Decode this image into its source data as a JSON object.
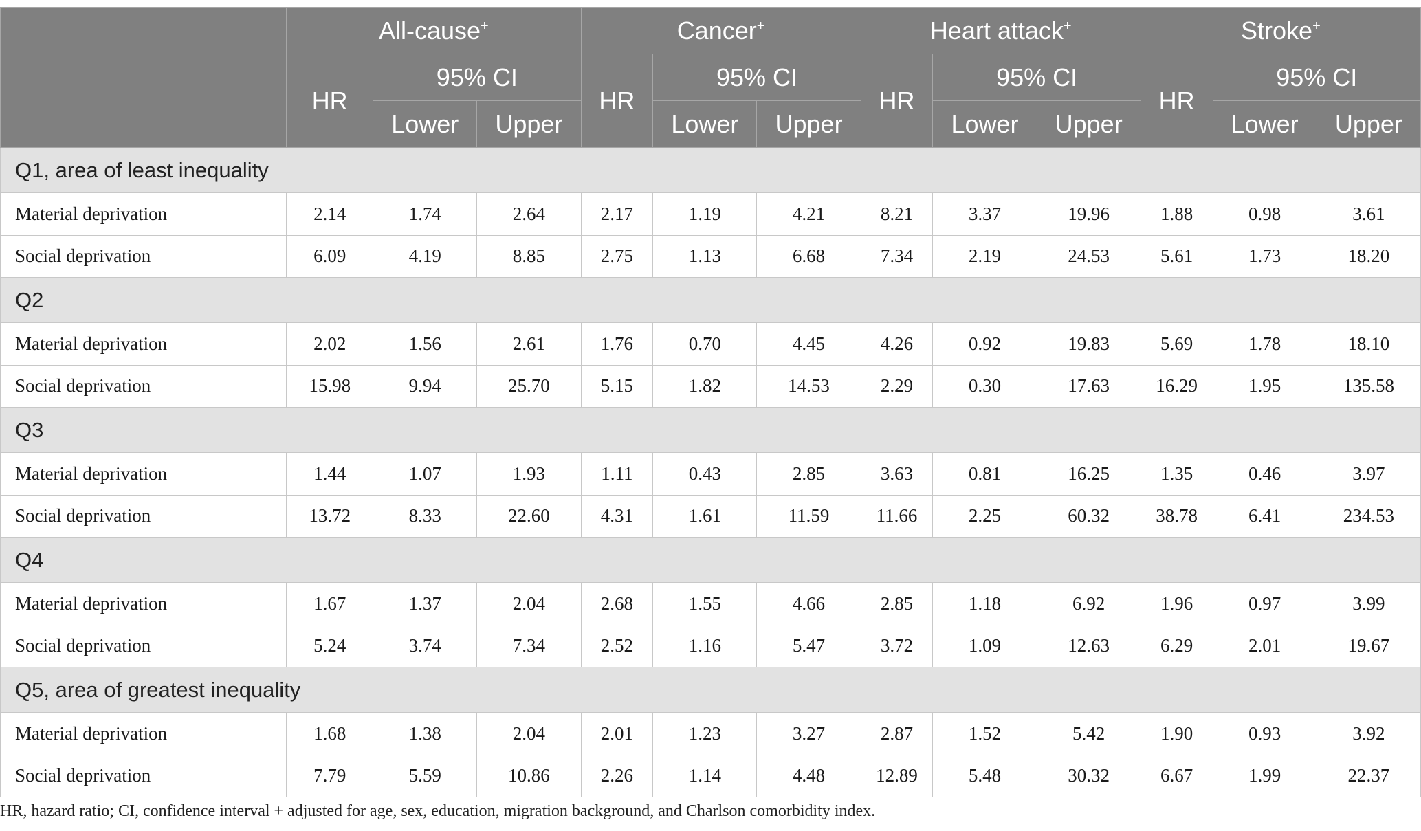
{
  "header": {
    "groups": [
      {
        "name": "All-cause",
        "mark": "+"
      },
      {
        "name": "Cancer",
        "mark": "+"
      },
      {
        "name": "Heart attack",
        "mark": "+"
      },
      {
        "name": "Stroke",
        "mark": "+"
      }
    ],
    "hr": "HR",
    "ci": "95% CI",
    "lower": "Lower",
    "upper": "Upper"
  },
  "sections": [
    {
      "title": "Q1, area of least inequality",
      "rows": [
        {
          "label": "Material deprivation",
          "values": [
            "2.14",
            "1.74",
            "2.64",
            "2.17",
            "1.19",
            "4.21",
            "8.21",
            "3.37",
            "19.96",
            "1.88",
            "0.98",
            "3.61"
          ]
        },
        {
          "label": "Social deprivation",
          "values": [
            "6.09",
            "4.19",
            "8.85",
            "2.75",
            "1.13",
            "6.68",
            "7.34",
            "2.19",
            "24.53",
            "5.61",
            "1.73",
            "18.20"
          ]
        }
      ]
    },
    {
      "title": "Q2",
      "rows": [
        {
          "label": "Material deprivation",
          "values": [
            "2.02",
            "1.56",
            "2.61",
            "1.76",
            "0.70",
            "4.45",
            "4.26",
            "0.92",
            "19.83",
            "5.69",
            "1.78",
            "18.10"
          ]
        },
        {
          "label": "Social deprivation",
          "values": [
            "15.98",
            "9.94",
            "25.70",
            "5.15",
            "1.82",
            "14.53",
            "2.29",
            "0.30",
            "17.63",
            "16.29",
            "1.95",
            "135.58"
          ]
        }
      ]
    },
    {
      "title": "Q3",
      "rows": [
        {
          "label": "Material deprivation",
          "values": [
            "1.44",
            "1.07",
            "1.93",
            "1.11",
            "0.43",
            "2.85",
            "3.63",
            "0.81",
            "16.25",
            "1.35",
            "0.46",
            "3.97"
          ]
        },
        {
          "label": "Social deprivation",
          "values": [
            "13.72",
            "8.33",
            "22.60",
            "4.31",
            "1.61",
            "11.59",
            "11.66",
            "2.25",
            "60.32",
            "38.78",
            "6.41",
            "234.53"
          ]
        }
      ]
    },
    {
      "title": "Q4",
      "rows": [
        {
          "label": "Material deprivation",
          "values": [
            "1.67",
            "1.37",
            "2.04",
            "2.68",
            "1.55",
            "4.66",
            "2.85",
            "1.18",
            "6.92",
            "1.96",
            "0.97",
            "3.99"
          ]
        },
        {
          "label": "Social deprivation",
          "values": [
            "5.24",
            "3.74",
            "7.34",
            "2.52",
            "1.16",
            "5.47",
            "3.72",
            "1.09",
            "12.63",
            "6.29",
            "2.01",
            "19.67"
          ]
        }
      ]
    },
    {
      "title": "Q5, area of greatest inequality",
      "rows": [
        {
          "label": "Material deprivation",
          "values": [
            "1.68",
            "1.38",
            "2.04",
            "2.01",
            "1.23",
            "3.27",
            "2.87",
            "1.52",
            "5.42",
            "1.90",
            "0.93",
            "3.92"
          ]
        },
        {
          "label": "Social deprivation",
          "values": [
            "7.79",
            "5.59",
            "10.86",
            "2.26",
            "1.14",
            "4.48",
            "12.89",
            "5.48",
            "30.32",
            "6.67",
            "1.99",
            "22.37"
          ]
        }
      ]
    }
  ],
  "footnote": "HR, hazard ratio; CI, confidence interval + adjusted for age, sex, education, migration background, and Charlson comorbidity index.",
  "colors": {
    "header_bg": "#808080",
    "section_bg": "#e2e2e2",
    "border": "#c8c8c8"
  }
}
